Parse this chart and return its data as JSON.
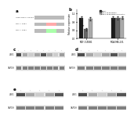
{
  "panel_b": {
    "groups": [
      "MCF-7/ZEB1",
      "MDA-MB-231"
    ],
    "bar_labels": [
      "miRNA",
      "miR-17a-5p mimic",
      "miR-17a-5p mimic+inhibitor"
    ],
    "bar_colors": [
      "#1a1a1a",
      "#666666",
      "#aaaaaa"
    ],
    "values": {
      "MCF-7/ZEB1": [
        1.0,
        0.45,
        0.95
      ],
      "MDA-MB-231": [
        1.0,
        0.98,
        1.0
      ]
    },
    "errors": {
      "MCF-7/ZEB1": [
        0.05,
        0.06,
        0.07
      ],
      "MDA-MB-231": [
        0.05,
        0.06,
        0.07
      ]
    },
    "ylabel": "Relative expression",
    "ylim": [
      0,
      1.4
    ],
    "yticks": [
      0,
      0.4,
      0.8,
      1.2
    ]
  },
  "background_color": "#ffffff",
  "panel_labels": [
    "a",
    "b",
    "c",
    "d",
    "e"
  ],
  "panel_label_color": "#000000",
  "wb_bands": {
    "row_labels": [
      "ZEB1",
      "GAPDH"
    ],
    "band_color_light": "#c8c8c8",
    "band_color_dark": "#686868",
    "background": "#f0f0f0"
  }
}
